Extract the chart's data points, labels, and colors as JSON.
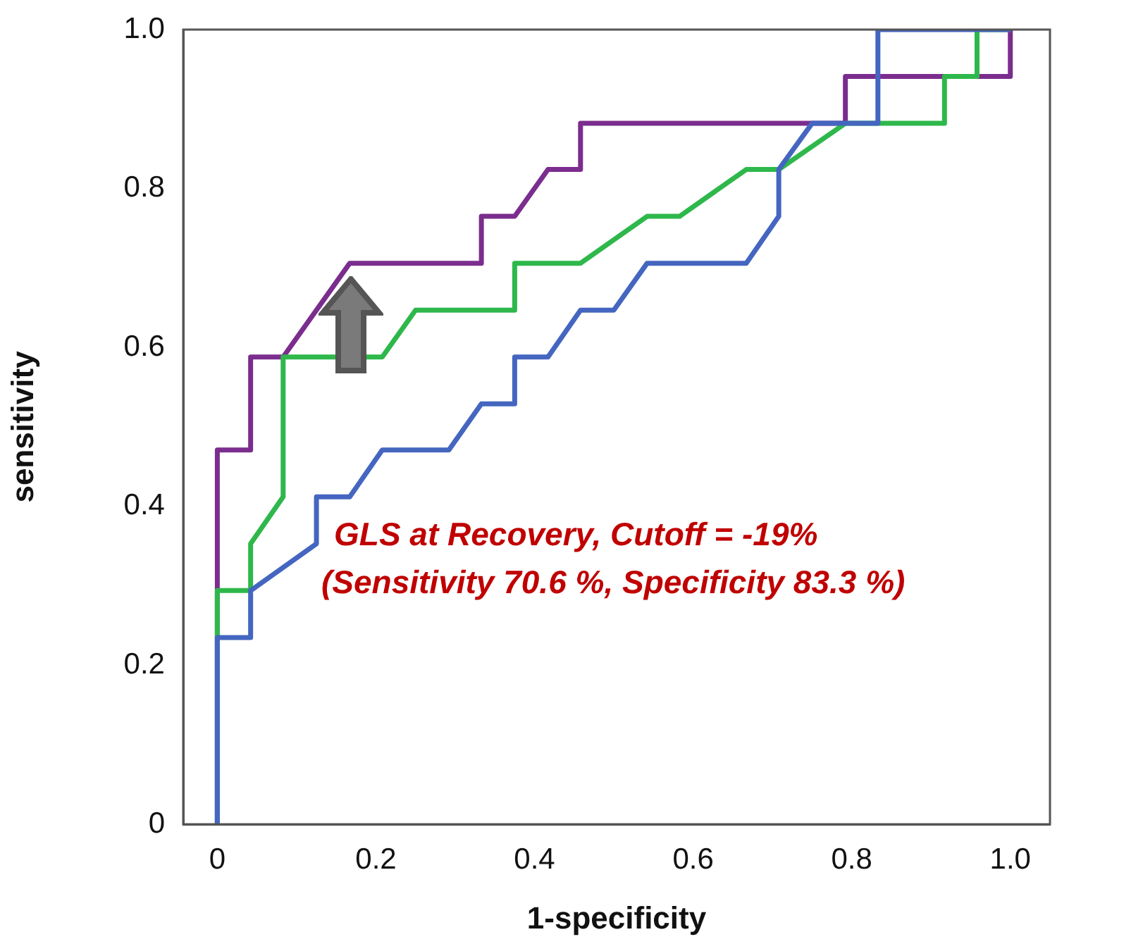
{
  "chart_data": {
    "type": "line",
    "xlabel": "1-specificity",
    "ylabel": "sensitivity",
    "xlim": [
      -0.043,
      1.05
    ],
    "ylim": [
      0,
      1
    ],
    "xticks": [
      0,
      0.2,
      0.4,
      0.6,
      0.8,
      {
        "value": 1,
        "label": "1.0"
      }
    ],
    "yticks": [
      0,
      0.2,
      0.4,
      0.6,
      0.8,
      {
        "value": 1,
        "label": "1.0"
      }
    ],
    "grid": false,
    "legend": false,
    "marker": "none",
    "line_style": "solid",
    "annotations": [
      "GLS at Recovery, Cutoff = -19%",
      "(Sensitivity 70.6 %, Specificity 83.3 %)"
    ],
    "series": [
      {
        "color": "#4466c0",
        "x": [
          0,
          0,
          0.042,
          0.042,
          0.125,
          0.125,
          0.167,
          0.208,
          0.292,
          0.333,
          0.375,
          0.375,
          0.417,
          0.458,
          0.5,
          0.542,
          0.667,
          0.708,
          0.708,
          0.75,
          0.833,
          0.833,
          1
        ],
        "values": [
          0,
          0.235,
          0.235,
          0.294,
          0.353,
          0.412,
          0.412,
          0.471,
          0.471,
          0.529,
          0.529,
          0.588,
          0.588,
          0.647,
          0.647,
          0.706,
          0.706,
          0.765,
          0.824,
          0.882,
          0.882,
          1,
          1
        ]
      },
      {
        "color": "#2eb84b",
        "x": [
          0,
          0,
          0.042,
          0.042,
          0.083,
          0.083,
          0.208,
          0.25,
          0.375,
          0.375,
          0.458,
          0.542,
          0.583,
          0.667,
          0.708,
          0.792,
          0.917,
          0.917,
          0.958,
          0.958,
          1
        ],
        "values": [
          0,
          0.294,
          0.294,
          0.353,
          0.412,
          0.588,
          0.588,
          0.647,
          0.647,
          0.706,
          0.706,
          0.765,
          0.765,
          0.824,
          0.824,
          0.882,
          0.882,
          0.941,
          0.941,
          1,
          1
        ]
      },
      {
        "color": "#7b2d8e",
        "x": [
          0,
          0,
          0.042,
          0.042,
          0.083,
          0.167,
          0.333,
          0.333,
          0.375,
          0.417,
          0.458,
          0.458,
          0.792,
          0.792,
          1,
          1
        ],
        "values": [
          0,
          0.471,
          0.471,
          0.588,
          0.588,
          0.706,
          0.706,
          0.765,
          0.765,
          0.824,
          0.824,
          0.882,
          0.882,
          0.941,
          0.941,
          1
        ]
      }
    ]
  }
}
